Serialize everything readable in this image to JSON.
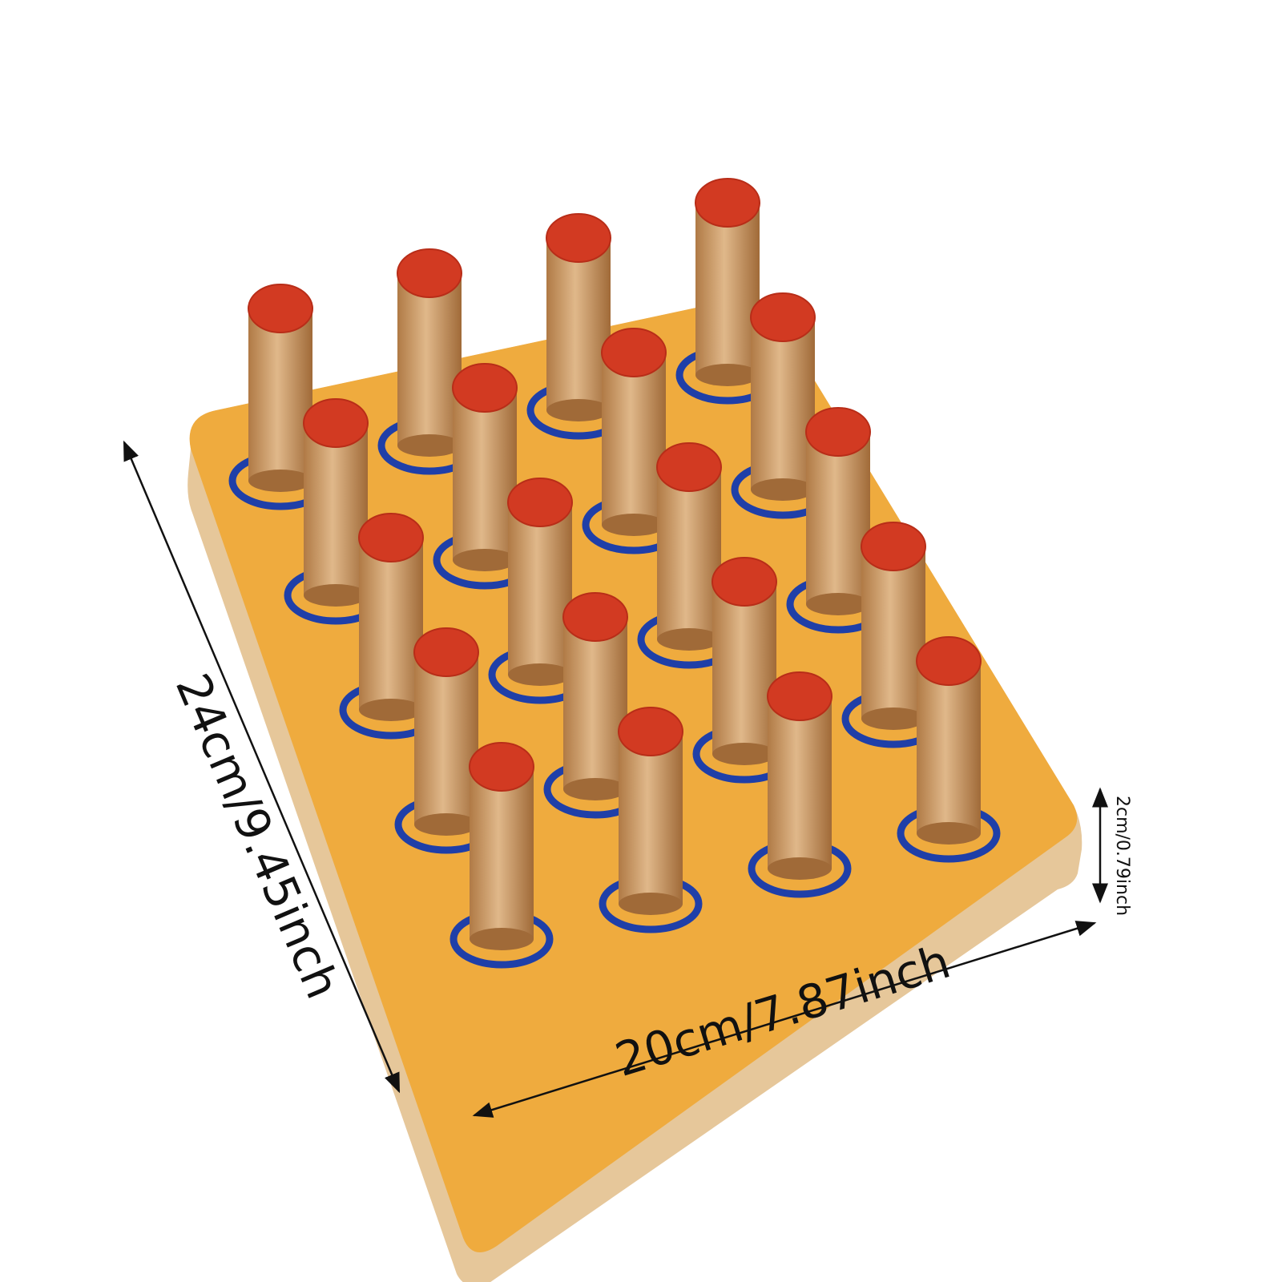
{
  "dimensions": {
    "length": "24cm/9.45inch",
    "width": "20cm/7.87inch",
    "height": "2cm/0.79inch"
  }
}
